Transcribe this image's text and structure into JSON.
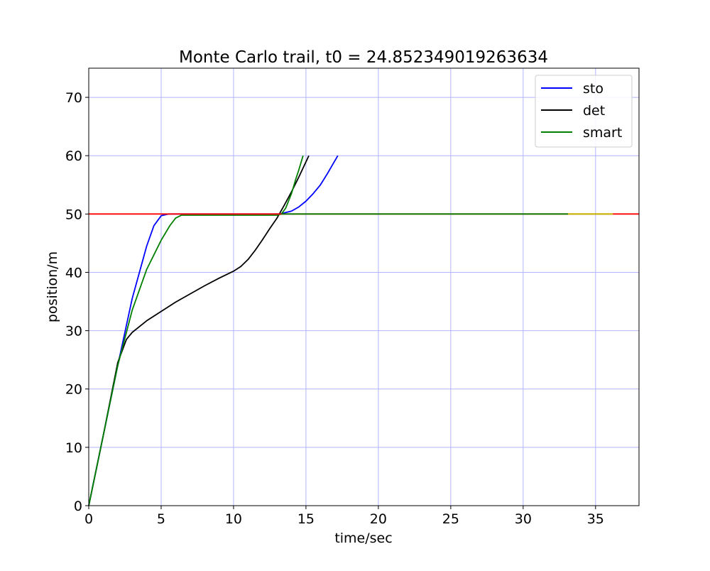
{
  "chart_data": {
    "type": "line",
    "title": "Monte Carlo trail, t0 = 24.852349019263634",
    "xlabel": "time/sec",
    "ylabel": "position/m",
    "xlim": [
      0,
      38
    ],
    "ylim": [
      0,
      75
    ],
    "xticks": [
      0,
      5,
      10,
      15,
      20,
      25,
      30,
      35
    ],
    "yticks": [
      0,
      10,
      20,
      30,
      40,
      50,
      60,
      70
    ],
    "grid": true,
    "grid_color": "#b3b3ff",
    "legend_position": "upper-right",
    "series": [
      {
        "name": "sto",
        "color": "#0000ff",
        "points": [
          [
            0,
            0
          ],
          [
            1,
            12
          ],
          [
            2,
            24
          ],
          [
            3,
            35.5
          ],
          [
            4,
            44.5
          ],
          [
            4.5,
            48
          ],
          [
            5,
            49.7
          ],
          [
            5.5,
            50
          ],
          [
            13.2,
            50
          ],
          [
            13.5,
            50.2
          ],
          [
            14,
            50.5
          ],
          [
            14.5,
            51.2
          ],
          [
            15,
            52.2
          ],
          [
            15.5,
            53.5
          ],
          [
            16,
            55
          ],
          [
            16.5,
            57
          ],
          [
            17.2,
            60
          ]
        ]
      },
      {
        "name": "det",
        "color": "#000000",
        "points": [
          [
            0,
            0
          ],
          [
            1,
            12
          ],
          [
            2,
            24.5
          ],
          [
            2.6,
            28.5
          ],
          [
            3,
            29.7
          ],
          [
            4,
            31.7
          ],
          [
            5,
            33.3
          ],
          [
            6,
            34.9
          ],
          [
            7,
            36.3
          ],
          [
            8,
            37.7
          ],
          [
            9,
            39
          ],
          [
            10,
            40.2
          ],
          [
            10.5,
            41
          ],
          [
            11,
            42.2
          ],
          [
            11.5,
            43.8
          ],
          [
            12,
            45.6
          ],
          [
            12.5,
            47.5
          ],
          [
            13,
            49.3
          ],
          [
            13.5,
            51.5
          ],
          [
            14,
            53.8
          ],
          [
            14.5,
            56.3
          ],
          [
            15.2,
            60
          ]
        ]
      },
      {
        "name": "smart",
        "color": "#008000",
        "points": [
          [
            0,
            0
          ],
          [
            1,
            12
          ],
          [
            2,
            24
          ],
          [
            3,
            33.5
          ],
          [
            4,
            40.5
          ],
          [
            5,
            45.5
          ],
          [
            5.6,
            48
          ],
          [
            6,
            49.3
          ],
          [
            6.4,
            49.8
          ],
          [
            13,
            49.8
          ],
          [
            13.3,
            50
          ],
          [
            13.6,
            51
          ],
          [
            14,
            53.5
          ],
          [
            14.3,
            56
          ],
          [
            14.5,
            57.5
          ],
          [
            14.8,
            60
          ]
        ]
      },
      {
        "color": "#ff0000",
        "points": [
          [
            0,
            50
          ],
          [
            38,
            50
          ]
        ]
      },
      {
        "color": "#008000",
        "points": [
          [
            13.3,
            50
          ],
          [
            33.1,
            50
          ]
        ]
      },
      {
        "color": "#bfbf00",
        "points": [
          [
            33.1,
            50
          ],
          [
            36.2,
            50
          ]
        ]
      }
    ]
  }
}
